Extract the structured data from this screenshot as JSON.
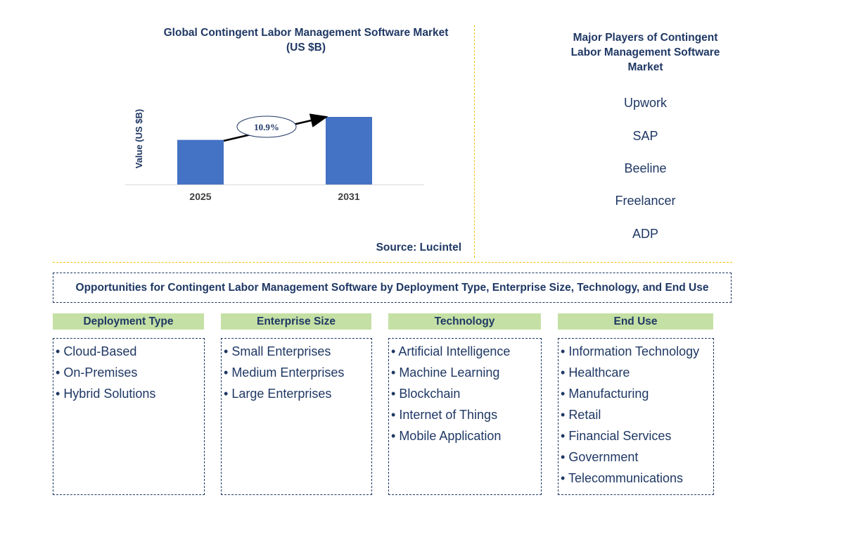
{
  "chart_data": {
    "type": "bar",
    "title": "Global Contingent Labor Management Software Market (US $B)",
    "categories": [
      "2025",
      "2031"
    ],
    "values": [
      0.66,
      1.0
    ],
    "ylabel": "Value (US $B)",
    "annotation": "10.9%",
    "bar_color": "#4472c4"
  },
  "source": "Source: Lucintel",
  "players": {
    "title": "Major Players of Contingent Labor Management Software Market",
    "items": [
      "Upwork",
      "SAP",
      "Beeline",
      "Freelancer",
      "ADP"
    ]
  },
  "opportunities": {
    "title": "Opportunities for Contingent Labor Management Software by Deployment Type, Enterprise Size, Technology, and End Use",
    "segments": [
      {
        "heading": "Deployment Type",
        "items": [
          "Cloud-Based",
          "On-Premises",
          "Hybrid Solutions"
        ]
      },
      {
        "heading": "Enterprise Size",
        "items": [
          "Small Enterprises",
          "Medium Enterprises",
          "Large Enterprises"
        ]
      },
      {
        "heading": "Technology",
        "items": [
          "Artificial Intelligence",
          "Machine Learning",
          "Blockchain",
          "Internet of Things",
          "Mobile Application"
        ]
      },
      {
        "heading": "End Use",
        "items": [
          "Information Technology",
          "Healthcare",
          "Manufacturing",
          "Retail",
          "Financial Services",
          "Government",
          "Telecommunications"
        ]
      }
    ]
  },
  "colors": {
    "text": "#1f3864",
    "header_fill": "#c5e0a5",
    "divider": "#f2c200"
  }
}
